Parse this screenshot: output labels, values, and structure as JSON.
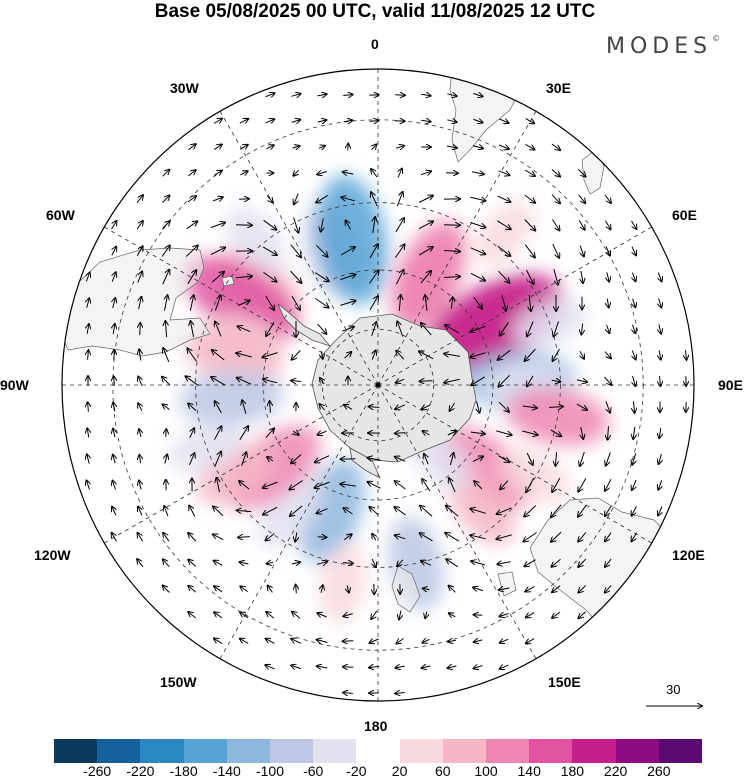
{
  "title": "Base 05/08/2025 00 UTC, valid 11/08/2025 12 UTC",
  "brand": {
    "name": "MODES",
    "mark": "©"
  },
  "longitude_labels": [
    "0",
    "30E",
    "60E",
    "90E",
    "120E",
    "150E",
    "180",
    "150W",
    "120W",
    "90W",
    "60W",
    "30W"
  ],
  "reference_vector": {
    "value": "30"
  },
  "colorbar": {
    "colors": [
      "#0c3a5c",
      "#15609a",
      "#2b86c4",
      "#58a3d6",
      "#8fb6de",
      "#bcc7e4",
      "#e2e1f0",
      "#ffffff",
      "#f8dade",
      "#f6b6c6",
      "#ef86b2",
      "#e153a0",
      "#c41f8c",
      "#8e0c82",
      "#5a0a72"
    ],
    "tick_labels": [
      "-260",
      "-220",
      "-180",
      "-140",
      "-100",
      "-60",
      "-20",
      "20",
      "60",
      "100",
      "140",
      "180",
      "220",
      "260"
    ]
  },
  "anomaly_blobs": [
    {
      "lon": 25,
      "lat": -48,
      "value": 130
    },
    {
      "lon": 25,
      "lat": -50,
      "value": 100
    },
    {
      "lon": -18,
      "lat": -42,
      "value": -90
    },
    {
      "lon": -10,
      "lat": -40,
      "value": -160
    },
    {
      "lon": -50,
      "lat": -38,
      "value": 90
    },
    {
      "lon": -58,
      "lat": -36,
      "value": 150
    },
    {
      "lon": -72,
      "lat": -42,
      "value": 50
    },
    {
      "lon": -78,
      "lat": -40,
      "value": 90
    },
    {
      "lon": 60,
      "lat": -46,
      "value": 140
    },
    {
      "lon": 62,
      "lat": -45,
      "value": 210
    },
    {
      "lon": 88,
      "lat": -42,
      "value": -120
    },
    {
      "lon": 90,
      "lat": -40,
      "value": -60
    },
    {
      "lon": 100,
      "lat": -30,
      "value": 100
    },
    {
      "lon": 128,
      "lat": -44,
      "value": 120
    },
    {
      "lon": 140,
      "lat": -36,
      "value": 60
    },
    {
      "lon": 120,
      "lat": -30,
      "value": 40
    },
    {
      "lon": 168,
      "lat": -30,
      "value": -80
    },
    {
      "lon": -160,
      "lat": -44,
      "value": -110
    },
    {
      "lon": -145,
      "lat": -38,
      "value": -60
    },
    {
      "lon": -128,
      "lat": -44,
      "value": 120
    },
    {
      "lon": -122,
      "lat": -34,
      "value": 60
    },
    {
      "lon": -95,
      "lat": -40,
      "value": -100
    },
    {
      "lon": -110,
      "lat": -30,
      "value": -40
    },
    {
      "lon": -170,
      "lat": -25,
      "value": 50
    },
    {
      "lon": 140,
      "lat": -56,
      "value": -40
    },
    {
      "lon": 70,
      "lat": -30,
      "value": -40
    },
    {
      "lon": -40,
      "lat": -28,
      "value": -40
    },
    {
      "lon": 40,
      "lat": -26,
      "value": 40
    }
  ]
}
